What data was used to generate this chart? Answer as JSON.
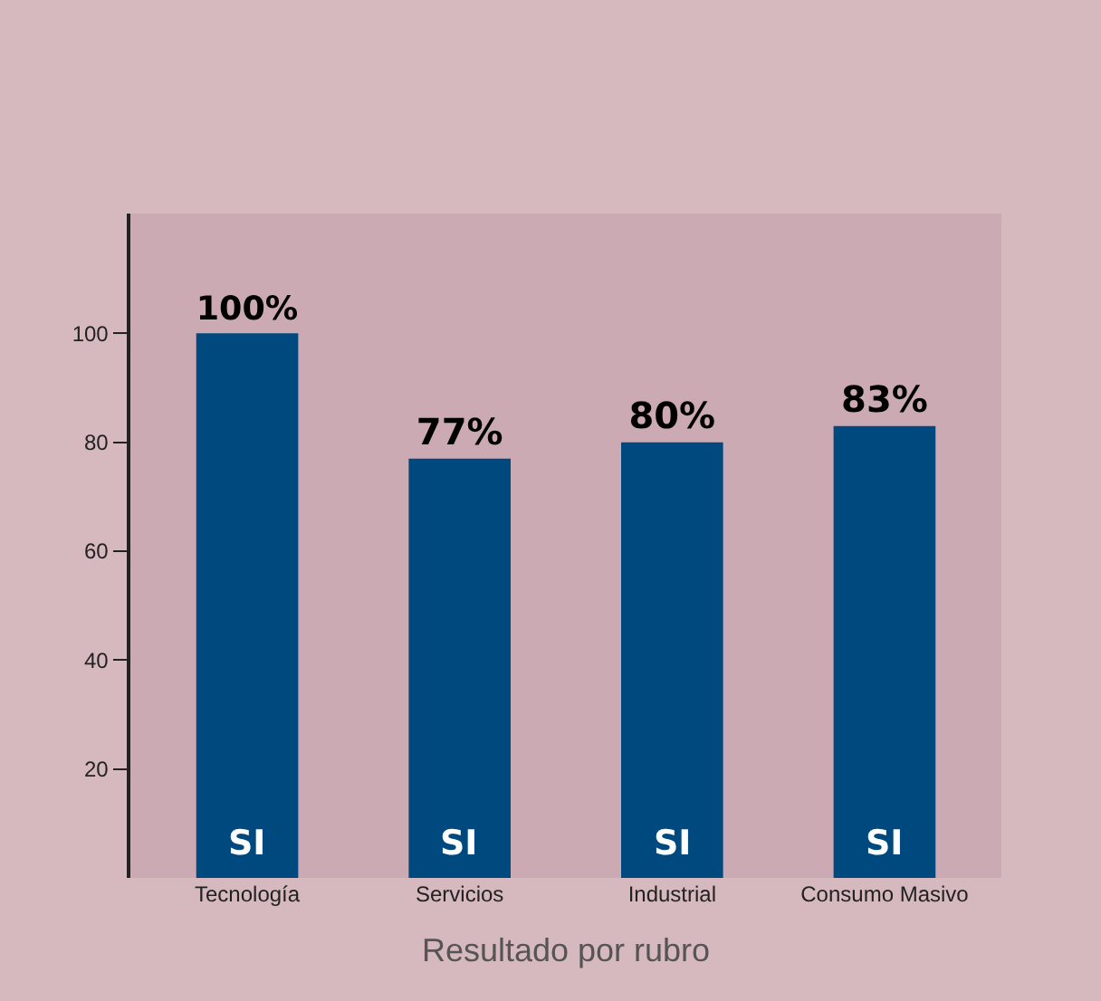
{
  "chart_data": {
    "type": "bar",
    "xlabel": "Resultado por rubro",
    "categories": [
      "Tecnología",
      "Servicios",
      "Industrial",
      "Consumo Masivo"
    ],
    "values": [
      100,
      77,
      80,
      83
    ],
    "value_labels": [
      "100%",
      "77%",
      "80%",
      "83%"
    ],
    "color": "#00497f",
    "ylim": [
      0,
      122
    ],
    "yticks": [
      20,
      40,
      60,
      80,
      100
    ],
    "grid": false,
    "legend": false,
    "annotations": [
      "SI",
      "SI",
      "SI",
      "SI"
    ]
  }
}
